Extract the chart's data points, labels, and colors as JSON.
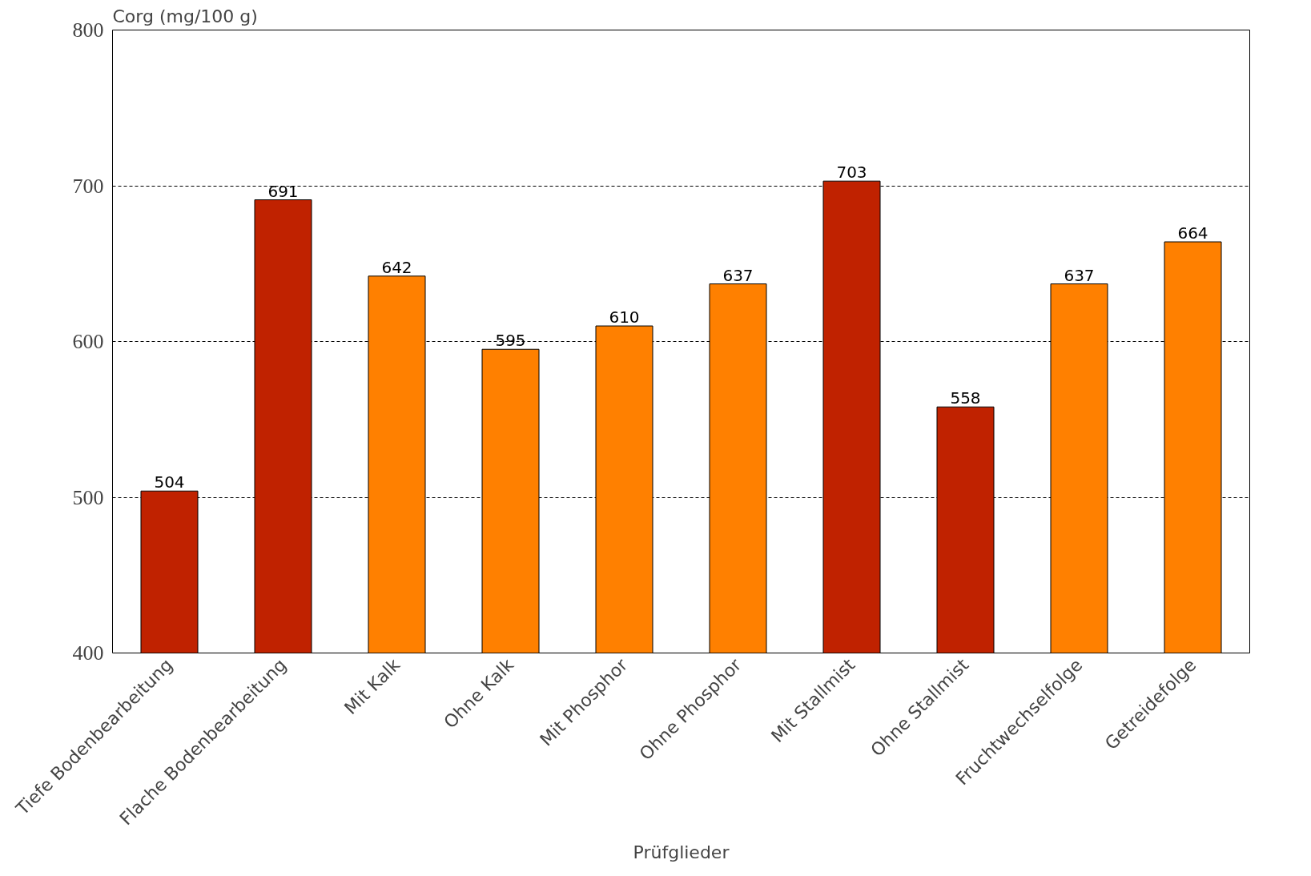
{
  "chart_data": {
    "type": "bar",
    "ylabel": "Corg (mg/100 g)",
    "xlabel": "Prüfglieder",
    "categories": [
      "Tiefe Bodenbearbeitung",
      "Flache Bodenbearbeitung",
      "Mit Kalk",
      "Ohne Kalk",
      "Mit Phosphor",
      "Ohne Phosphor",
      "Mit Stallmist",
      "Ohne Stallmist",
      "Fruchtwechselfolge",
      "Getreidefolge"
    ],
    "values": [
      504,
      691,
      642,
      595,
      610,
      637,
      703,
      558,
      637,
      664
    ],
    "colors": [
      "#c02200",
      "#c02200",
      "#ff8000",
      "#ff8000",
      "#ff8000",
      "#ff8000",
      "#c02200",
      "#c02200",
      "#ff8000",
      "#ff8000"
    ],
    "ylim": [
      400,
      800
    ],
    "yticks": [
      400,
      500,
      600,
      700,
      800
    ],
    "grid": "y",
    "data_labels": true
  }
}
